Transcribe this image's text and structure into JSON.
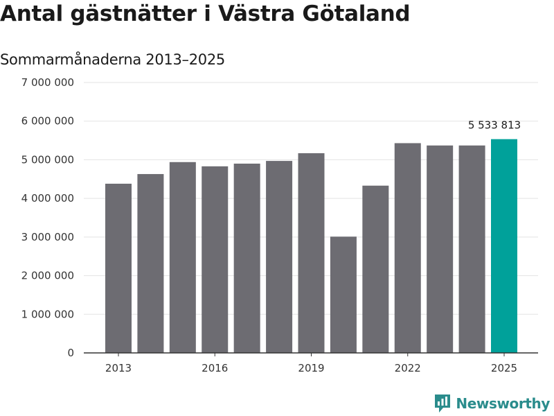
{
  "title": "Antal gästnätter i Västra Götaland",
  "subtitle": "Sommarmånaderna 2013–2025",
  "brand": {
    "name": "Newsworthy",
    "icon": "newsworthy-logo-icon"
  },
  "colors": {
    "bar": "#6d6c72",
    "highlight": "#00a19a",
    "grid": "#e3e3e3",
    "axis": "#333333"
  },
  "chart_data": {
    "type": "bar",
    "categories": [
      "2013",
      "2014",
      "2015",
      "2016",
      "2017",
      "2018",
      "2019",
      "2020",
      "2021",
      "2022",
      "2023",
      "2024",
      "2025"
    ],
    "values": [
      4380000,
      4630000,
      4940000,
      4830000,
      4900000,
      4970000,
      5170000,
      3010000,
      4330000,
      5430000,
      5370000,
      5370000,
      5533813
    ],
    "x_tick_labels": [
      "2013",
      "2016",
      "2019",
      "2022",
      "2025"
    ],
    "y_ticks": [
      0,
      1000000,
      2000000,
      3000000,
      4000000,
      5000000,
      6000000,
      7000000
    ],
    "y_tick_labels": [
      "0",
      "1 000 000",
      "2 000 000",
      "3 000 000",
      "4 000 000",
      "5 000 000",
      "6 000 000",
      "7 000 000"
    ],
    "ylim": [
      0,
      7000000
    ],
    "highlight_category": "2025",
    "annotation": {
      "category": "2025",
      "text": "5 533 813"
    },
    "grid": true,
    "xlabel": "",
    "ylabel": ""
  }
}
